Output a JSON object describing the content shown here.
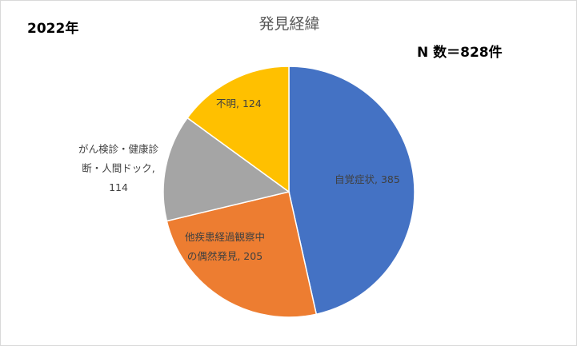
{
  "header": {
    "year": "2022年",
    "n_label": "N 数＝828件"
  },
  "chart_data": {
    "type": "pie",
    "title": "発見経緯",
    "start_angle_deg": 0,
    "direction": "clockwise",
    "legend": "none",
    "slices": [
      {
        "label": "自覚症状",
        "value": 385,
        "color": "#4472C4",
        "data_label": "自覚症状, 385"
      },
      {
        "label": "他疾患経過観察中の偶然発見",
        "value": 205,
        "color": "#ED7D31",
        "data_label_lines": [
          "他疾患経過観察中",
          "の偶然発見, 205"
        ]
      },
      {
        "label": "がん検診・健康診断・人間ドック",
        "value": 114,
        "color": "#A5A5A5",
        "data_label_lines": [
          "がん検診・健康診",
          "断・人間ドック,",
          "114"
        ]
      },
      {
        "label": "不明",
        "value": 124,
        "color": "#FFC000",
        "data_label": "不明, 124"
      }
    ]
  }
}
